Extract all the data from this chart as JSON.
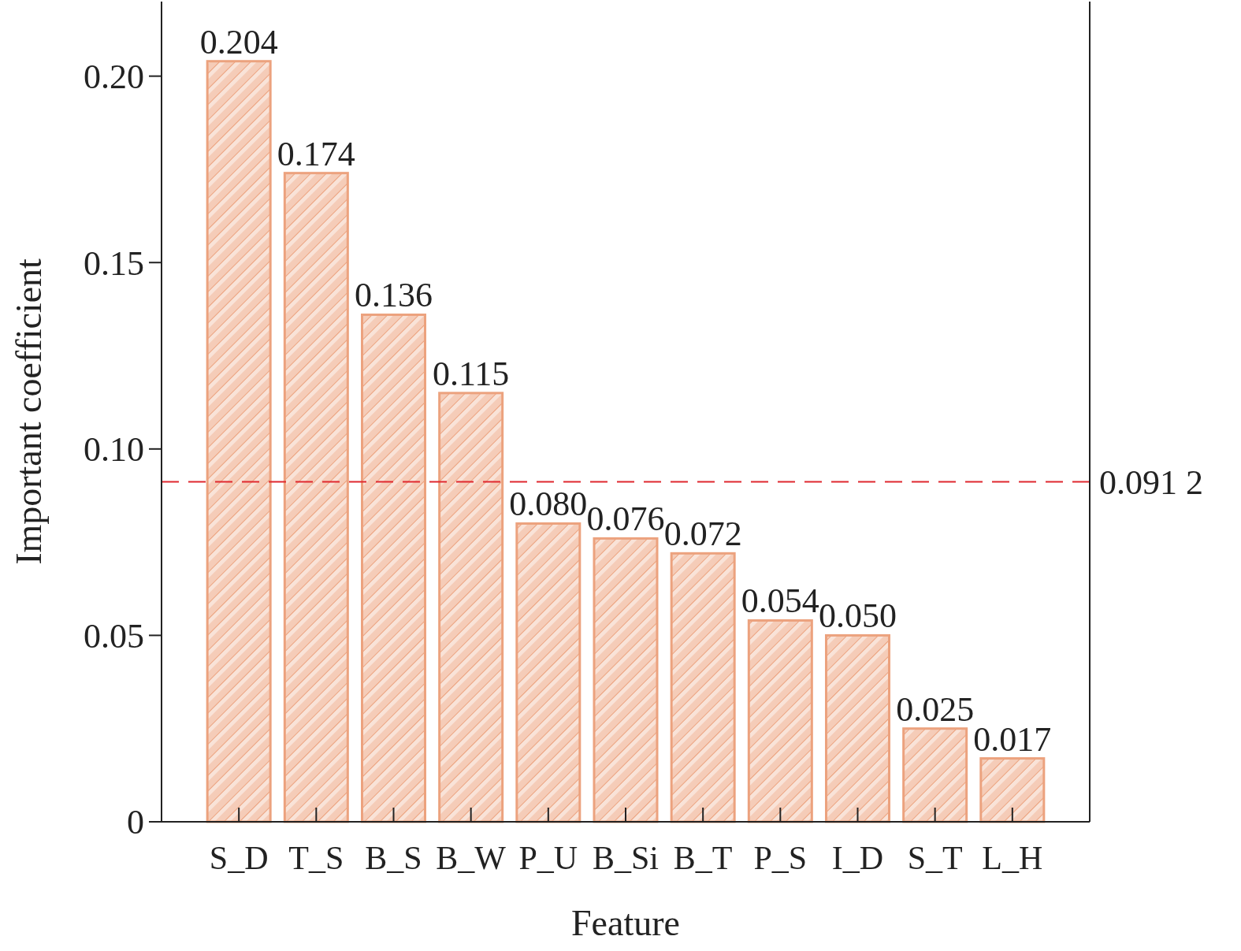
{
  "chart_data": {
    "type": "bar",
    "xlabel": "Feature",
    "ylabel": "Important coefficient",
    "categories": [
      "S_D",
      "T_S",
      "B_S",
      "B_W",
      "P_U",
      "B_Si",
      "B_T",
      "P_S",
      "I_D",
      "S_T",
      "L_H"
    ],
    "values": [
      0.204,
      0.174,
      0.136,
      0.115,
      0.08,
      0.076,
      0.072,
      0.054,
      0.05,
      0.025,
      0.017
    ],
    "value_labels": [
      "0.204",
      "0.174",
      "0.136",
      "0.115",
      "0.080",
      "0.076",
      "0.072",
      "0.054",
      "0.050",
      "0.025",
      "0.017"
    ],
    "color": "#eca27e",
    "ylim": [
      0,
      0.22
    ],
    "yticks": [
      {
        "value": 0,
        "label": "0"
      },
      0.05,
      {
        "value": 0.1,
        "label": "0.10"
      },
      0.15,
      {
        "value": 0.2,
        "label": "0.20"
      }
    ],
    "ref_lines": [
      {
        "axis": "y",
        "value": 0.0912,
        "label": "0.091 2",
        "color": "#e0282e",
        "line_style": "dashed"
      }
    ],
    "grid": false
  }
}
